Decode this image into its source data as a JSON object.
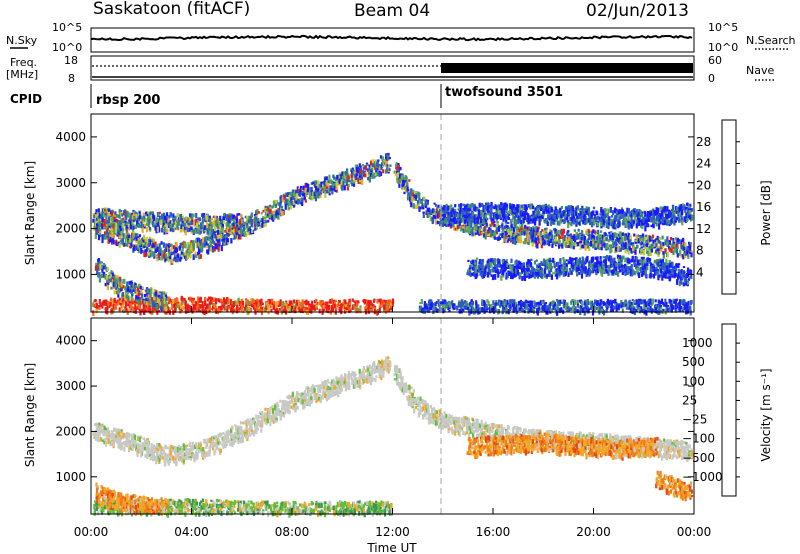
{
  "header": {
    "station": "Saskatoon (fitACF)",
    "beam": "Beam 04",
    "date": "02/Jun/2013"
  },
  "top_panels": {
    "nsky_label": "N.Sky",
    "nsearch_label": "N.Search",
    "nsky_ticks": [
      "10^5",
      "10^0"
    ],
    "nsearch_ticks": [
      "10^5",
      "10^0"
    ],
    "freq_label": "Freq.",
    "freq_unit": "[MHz]",
    "freq_ticks": [
      "18",
      "8"
    ],
    "nave_label": "Nave",
    "nave_ticks": [
      "60",
      "0"
    ],
    "cpid_label": "CPID",
    "cpid_segments": [
      {
        "name": "rbsp 200",
        "start_hour": 0,
        "end_hour": 14
      },
      {
        "name": "twofsound 3501",
        "start_hour": 14,
        "end_hour": 24
      }
    ]
  },
  "chart_data": [
    {
      "type": "heatmap",
      "panel": "power",
      "xlabel": "",
      "ylabel": "Slant Range [km]",
      "xlim": [
        0,
        24
      ],
      "ylim": [
        180,
        4500
      ],
      "yticks": [
        1000,
        2000,
        3000,
        4000
      ],
      "colorbar": {
        "label": "Power [dB]",
        "ticks": [
          4,
          8,
          12,
          16,
          20,
          24,
          28
        ],
        "colors": [
          "#1a1aff",
          "#2e5fc0",
          "#3f8f6e",
          "#5faa50",
          "#b9cf3a",
          "#f5a623",
          "#f5651e",
          "#ee1a1a"
        ]
      },
      "scatter_bands": [
        {
          "t": [
            0.1,
            1.5,
            3.0,
            4.5,
            6.0,
            7.0,
            8.0,
            9.5,
            11.0,
            11.9
          ],
          "r": [
            2050,
            1800,
            1500,
            1650,
            2050,
            2350,
            2700,
            3000,
            3300,
            3500
          ],
          "level": "mid"
        },
        {
          "t": [
            0.1,
            2.0,
            4.0,
            6.0
          ],
          "r": [
            2300,
            2200,
            2150,
            2150
          ],
          "level": "mid"
        },
        {
          "t": [
            12.1,
            12.8,
            13.5,
            14.5,
            16.0,
            18.0,
            20.0,
            22.0,
            23.9
          ],
          "r": [
            3300,
            2700,
            2400,
            2200,
            2000,
            1850,
            1800,
            1700,
            1600
          ],
          "level": "mid"
        },
        {
          "t": [
            14.0,
            16.0,
            18.0,
            20.0,
            22.0,
            23.9
          ],
          "r": [
            2350,
            2400,
            2350,
            2300,
            2250,
            2400
          ],
          "level": "low"
        },
        {
          "t": [
            15.0,
            17.0,
            19.0,
            21.0,
            23.0,
            23.9
          ],
          "r": [
            1200,
            1150,
            1200,
            1250,
            1150,
            900
          ],
          "level": "low"
        },
        {
          "t": [
            0.1,
            2.0,
            4.0,
            6.0,
            8.0,
            10.0,
            12.0
          ],
          "r": [
            300,
            320,
            350,
            300,
            280,
            290,
            300
          ],
          "level": "high"
        },
        {
          "t": [
            13.0,
            16.0,
            19.0,
            22.0,
            23.9
          ],
          "r": [
            280,
            270,
            280,
            290,
            280
          ],
          "level": "low"
        },
        {
          "t": [
            0.2,
            1.0,
            2.0,
            3.0
          ],
          "r": [
            1200,
            800,
            600,
            450
          ],
          "level": "mid"
        }
      ]
    },
    {
      "type": "heatmap",
      "panel": "velocity",
      "xlabel": "Time UT",
      "ylabel": "Slant Range [km]",
      "xlim": [
        0,
        24
      ],
      "ylim": [
        180,
        4500
      ],
      "xticks": [
        "00:00",
        "04:00",
        "08:00",
        "12:00",
        "16:00",
        "20:00",
        "00:00"
      ],
      "yticks": [
        1000,
        2000,
        3000,
        4000
      ],
      "colorbar": {
        "label": "Velocity [m s⁻¹]",
        "ticks": [
          "1000",
          "500",
          "100",
          "25",
          "−25",
          "−100",
          "−500",
          "−1000"
        ],
        "colors": [
          "#2040c0",
          "#2f6ab0",
          "#3f9455",
          "#5fc03a",
          "#c8c8c4",
          "#f5a623",
          "#f07a18",
          "#e64a14",
          "#ee1a1a"
        ]
      },
      "scatter_bands": [
        {
          "t": [
            0.1,
            1.5,
            3.0,
            4.5,
            6.0,
            7.0,
            8.0,
            9.5,
            11.0,
            11.9
          ],
          "r": [
            2050,
            1800,
            1500,
            1650,
            2050,
            2350,
            2700,
            3000,
            3300,
            3500
          ],
          "level": "ground"
        },
        {
          "t": [
            12.1,
            12.8,
            13.5,
            14.5,
            16.0,
            18.0,
            20.0,
            22.0,
            23.9
          ],
          "r": [
            3300,
            2700,
            2400,
            2200,
            2000,
            1850,
            1800,
            1700,
            1600
          ],
          "level": "ground"
        },
        {
          "t": [
            15.0,
            16.5,
            18.0,
            19.5,
            21.0,
            22.5
          ],
          "r": [
            1700,
            1750,
            1800,
            1700,
            1650,
            1700
          ],
          "level": "neg"
        },
        {
          "t": [
            0.1,
            2.0,
            4.0,
            6.0,
            8.0,
            10.0,
            12.0
          ],
          "r": [
            300,
            320,
            350,
            300,
            280,
            290,
            300
          ],
          "level": "pos"
        },
        {
          "t": [
            0.2,
            1.0,
            2.0,
            3.0
          ],
          "r": [
            700,
            500,
            400,
            350
          ],
          "level": "neg"
        },
        {
          "t": [
            22.5,
            23.2,
            23.9
          ],
          "r": [
            1000,
            800,
            700
          ],
          "level": "neg"
        }
      ]
    }
  ]
}
